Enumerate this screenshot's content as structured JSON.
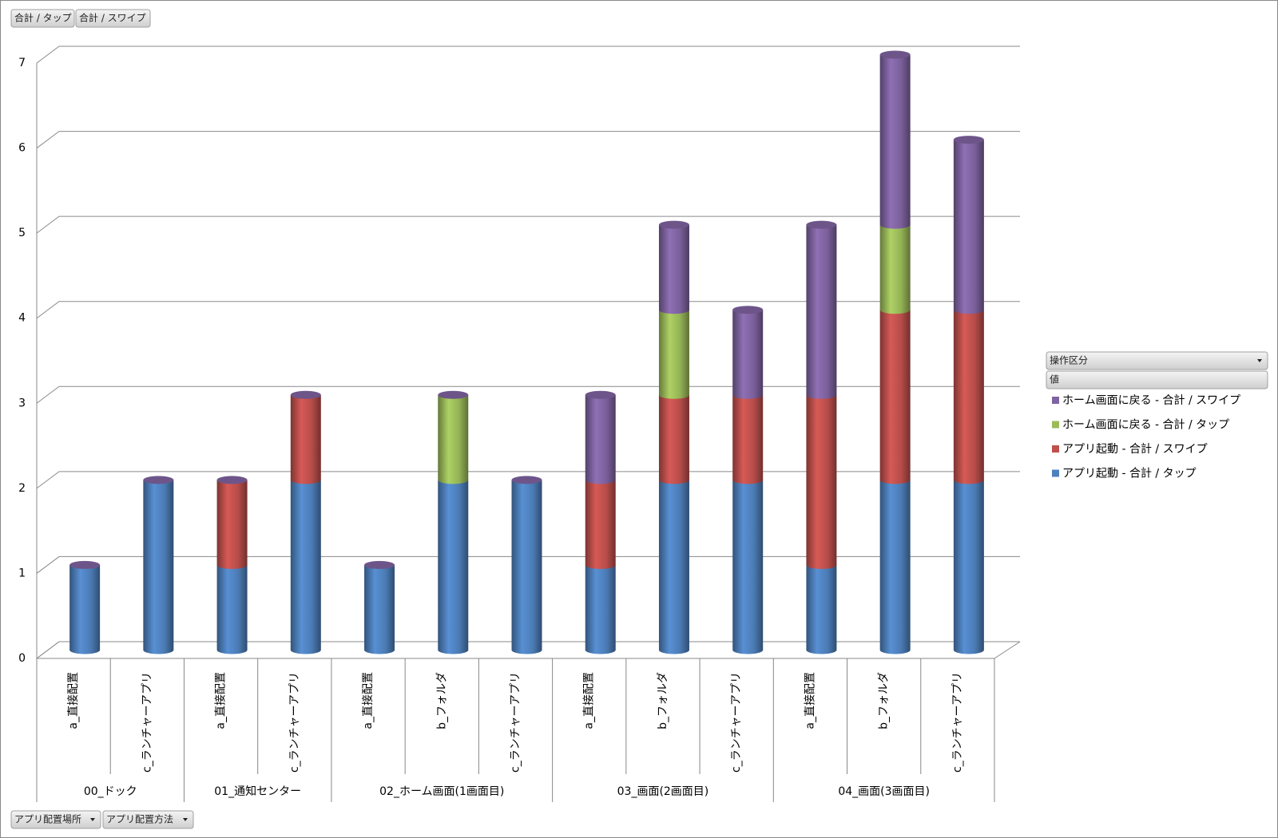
{
  "chart_data": {
    "type": "stacked-cylinder",
    "groups": [
      {
        "label": "00_ドック",
        "categories": [
          "a_直接配置",
          "c_ランチャーアプリ"
        ]
      },
      {
        "label": "01_通知センター",
        "categories": [
          "a_直接配置",
          "c_ランチャーアプリ"
        ]
      },
      {
        "label": "02_ホーム画面(1画面目)",
        "categories": [
          "a_直接配置",
          "b_フォルダ",
          "c_ランチャーアプリ"
        ]
      },
      {
        "label": "03_画面(2画面目)",
        "categories": [
          "a_直接配置",
          "b_フォルダ",
          "c_ランチャーアプリ"
        ]
      },
      {
        "label": "04_画面(3画面目)",
        "categories": [
          "a_直接配置",
          "b_フォルダ",
          "c_ランチャーアプリ"
        ]
      }
    ],
    "series": [
      {
        "name": "アプリ起動 - 合計 / タップ",
        "color": "#4f81bd",
        "values": [
          1,
          2,
          1,
          2,
          1,
          2,
          2,
          1,
          2,
          2,
          1,
          2,
          2
        ]
      },
      {
        "name": "アプリ起動 - 合計 / スワイプ",
        "color": "#c0504d",
        "values": [
          null,
          null,
          1,
          1,
          null,
          null,
          null,
          1,
          1,
          1,
          2,
          2,
          2
        ]
      },
      {
        "name": "ホーム画面に戻る - 合計 / タップ",
        "color": "#9bbb59",
        "values": [
          null,
          null,
          null,
          null,
          null,
          1,
          null,
          null,
          1,
          null,
          null,
          1,
          null
        ]
      },
      {
        "name": "ホーム画面に戻る - 合計 / スワイプ",
        "color": "#8064a2",
        "values": [
          null,
          null,
          null,
          null,
          null,
          null,
          null,
          1,
          1,
          1,
          2,
          2,
          2
        ]
      }
    ],
    "ylim": [
      0,
      7
    ],
    "yticks": [
      0,
      1,
      2,
      3,
      4,
      5,
      6,
      7
    ],
    "grid": true,
    "legend": "right"
  },
  "field_buttons": {
    "values": [
      "合計 / タップ",
      "合計 / スワイプ"
    ],
    "legend_field": "操作区分",
    "legend_values": "値",
    "axis_fields": [
      "アプリ配置場所",
      "アプリ配置方法"
    ]
  }
}
